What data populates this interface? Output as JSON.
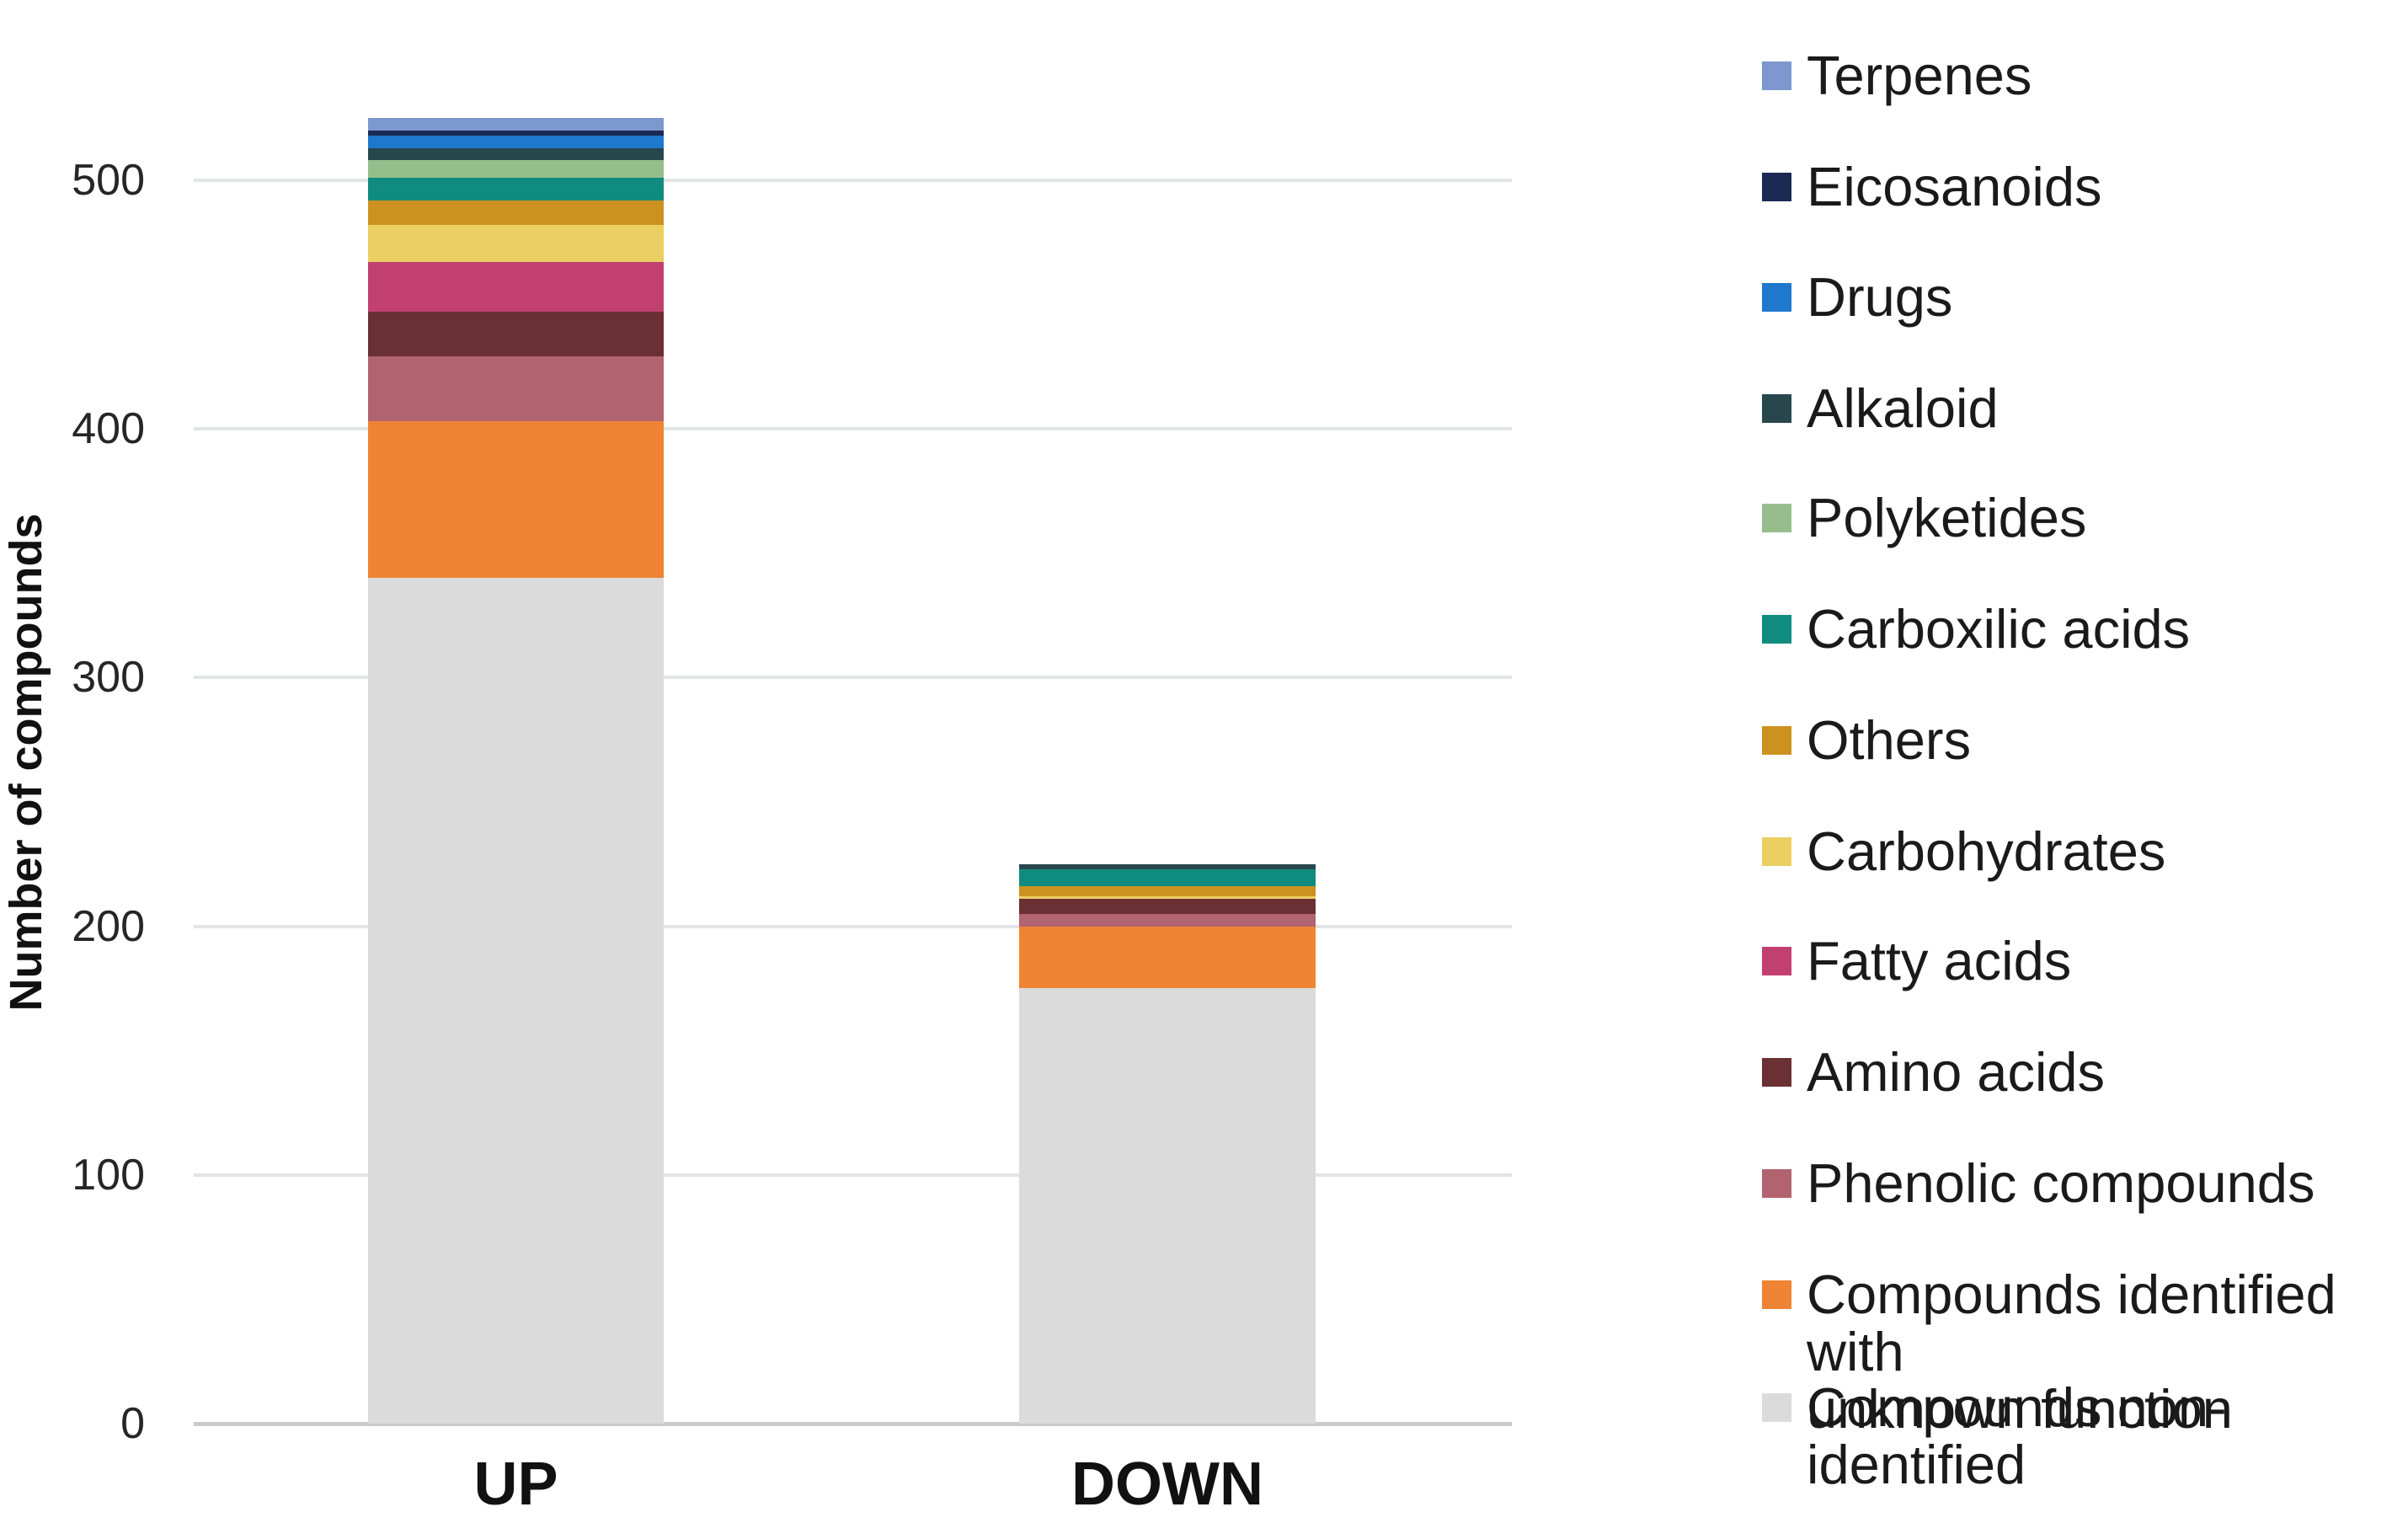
{
  "page": {
    "background": "#FFFFFF"
  },
  "chart_data": {
    "type": "bar",
    "stacked": true,
    "orientation": "vertical",
    "title": "",
    "xlabel": "",
    "ylabel": "Number of compounds",
    "categories": [
      "UP",
      "DOWN"
    ],
    "yticks": [
      0,
      100,
      200,
      300,
      400,
      500
    ],
    "ylim": [
      0,
      550
    ],
    "grid": true,
    "gridline_color": "#E2E4E6",
    "baseline_color": "#CACACA",
    "legend_position": "right",
    "series_order": "top-to-bottom",
    "series": [
      {
        "name": "Terpenes",
        "color": "#7D97CF",
        "values": [
          5,
          0
        ]
      },
      {
        "name": "Eicosanoids",
        "color": "#1B2A55",
        "values": [
          2,
          0
        ]
      },
      {
        "name": "Drugs",
        "color": "#1E78CC",
        "values": [
          5,
          0
        ]
      },
      {
        "name": "Alkaloid",
        "color": "#27474D",
        "values": [
          5,
          2
        ]
      },
      {
        "name": "Polyketides",
        "color": "#95BE8C",
        "values": [
          7,
          0
        ]
      },
      {
        "name": "Carboxilic acids",
        "color": "#108B80",
        "values": [
          9,
          7
        ]
      },
      {
        "name": "Others",
        "color": "#CC9220",
        "values": [
          10,
          4
        ]
      },
      {
        "name": "Carbohydrates",
        "color": "#EBCF62",
        "values": [
          15,
          1
        ]
      },
      {
        "name": "Fatty acids",
        "color": "#C2406F",
        "values": [
          20,
          0
        ]
      },
      {
        "name": "Amino acids",
        "color": "#6A3033",
        "values": [
          18,
          6
        ]
      },
      {
        "name": "Phenolic compounds",
        "color": "#B16470",
        "values": [
          26,
          5
        ]
      },
      {
        "name": "Compounds identified with unknown function",
        "color": "#EE8434",
        "values": [
          63,
          25
        ]
      },
      {
        "name": "Compounds non-identified",
        "color": "#DBDBDB",
        "values": [
          340,
          175
        ]
      }
    ],
    "legend_labels": [
      "Terpenes",
      "Eicosanoids",
      "Drugs",
      "Alkaloid",
      "Polyketides",
      "Carboxilic acids",
      "Others",
      "Carbohydrates",
      "Fatty acids",
      "Amino acids",
      "Phenolic compounds",
      "Compounds identified with\nunknown function",
      "Compounds non-identified"
    ],
    "totals": {
      "UP": 525,
      "DOWN": 225
    }
  }
}
